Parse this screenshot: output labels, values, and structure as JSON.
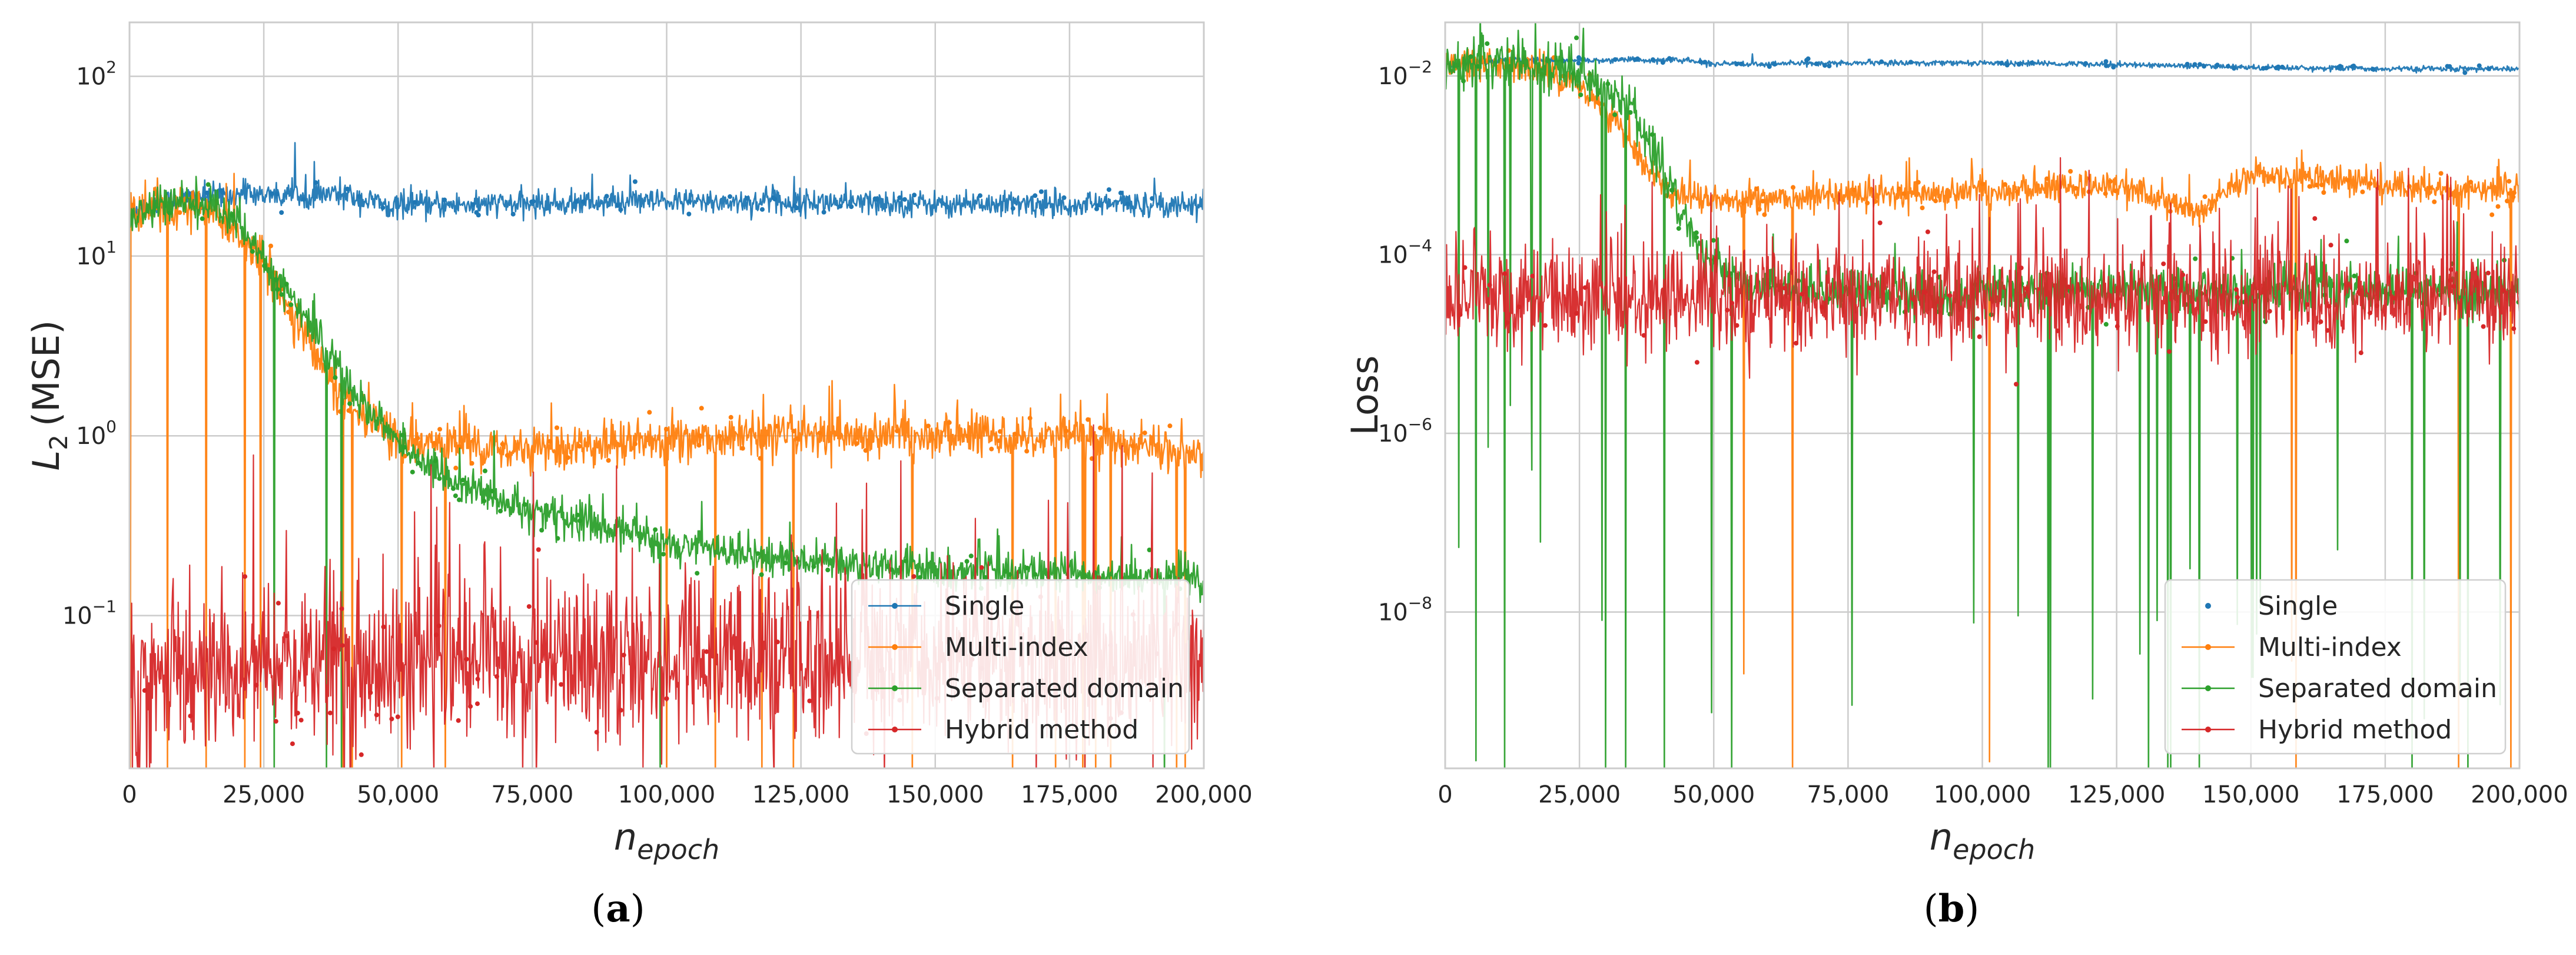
{
  "chart_data": [
    {
      "id": "a",
      "type": "line",
      "panel_label": "(a)",
      "panel_letter": "a",
      "xlabel": "n_epoch",
      "xlabel_main": "n",
      "xlabel_sub": "epoch",
      "ylabel": "L_2 (MSE)",
      "ylabel_main": "L",
      "ylabel_sub": "2",
      "ylabel_rest": "(MSE)",
      "yscale": "log",
      "xlim": [
        0,
        200000
      ],
      "ylim_log10": [
        -1.85,
        2.3
      ],
      "x_ticks": [
        0,
        25000,
        50000,
        75000,
        100000,
        125000,
        150000,
        175000,
        200000
      ],
      "x_tick_labels": [
        "0",
        "25,000",
        "50,000",
        "75,000",
        "100,000",
        "125,000",
        "150,000",
        "175,000",
        "200,000"
      ],
      "y_ticks_log10": [
        -1,
        0,
        1,
        2
      ],
      "y_tick_labels": [
        {
          "base": "10",
          "exp": "−1"
        },
        {
          "base": "10",
          "exp": "0"
        },
        {
          "base": "10",
          "exp": "1"
        },
        {
          "base": "10",
          "exp": "2"
        }
      ],
      "grid": true,
      "legend_position": "lower-right",
      "series": [
        {
          "name": "Single",
          "color": "#1f77b4",
          "x": [
            0,
            10000,
            20000,
            30000,
            40000,
            45000,
            50000,
            75000,
            100000,
            125000,
            150000,
            175000,
            200000
          ],
          "y": [
            18,
            21,
            22,
            22,
            22,
            20,
            19,
            19.5,
            20,
            20,
            19.5,
            19.5,
            19.5
          ]
        },
        {
          "name": "Multi-index",
          "color": "#ff7f0e",
          "x": [
            0,
            5000,
            15000,
            25000,
            32000,
            40000,
            50000,
            60000,
            75000,
            100000,
            125000,
            150000,
            175000,
            200000
          ],
          "y": [
            17,
            19,
            18,
            9,
            4,
            1.5,
            0.95,
            0.9,
            0.85,
            0.95,
            1.0,
            1.0,
            1.0,
            0.8
          ]
        },
        {
          "name": "Separated domain",
          "color": "#2ca02c",
          "x": [
            0,
            5000,
            15000,
            20000,
            30000,
            40000,
            50000,
            60000,
            75000,
            100000,
            125000,
            150000,
            175000,
            200000
          ],
          "y": [
            17,
            19,
            19.5,
            16,
            6,
            2.0,
            0.9,
            0.55,
            0.38,
            0.25,
            0.2,
            0.18,
            0.17,
            0.16
          ]
        },
        {
          "name": "Hybrid method",
          "color": "#d62728",
          "x": [
            0,
            5000,
            25000,
            50000,
            75000,
            100000,
            125000,
            150000,
            175000,
            200000
          ],
          "y": [
            0.03,
            0.045,
            0.05,
            0.052,
            0.055,
            0.055,
            0.055,
            0.055,
            0.055,
            0.055
          ]
        }
      ]
    },
    {
      "id": "b",
      "type": "line",
      "panel_label": "(b)",
      "panel_letter": "b",
      "xlabel": "n_epoch",
      "xlabel_main": "n",
      "xlabel_sub": "epoch",
      "ylabel": "Loss",
      "yscale": "log",
      "xlim": [
        0,
        200000
      ],
      "ylim_log10": [
        -9.75,
        -1.4
      ],
      "x_ticks": [
        0,
        25000,
        50000,
        75000,
        100000,
        125000,
        150000,
        175000,
        200000
      ],
      "x_tick_labels": [
        "0",
        "25,000",
        "50,000",
        "75,000",
        "100,000",
        "125,000",
        "150,000",
        "175,000",
        "200,000"
      ],
      "y_ticks_log10": [
        -8,
        -6,
        -4,
        -2
      ],
      "y_tick_labels": [
        {
          "base": "10",
          "exp": "−8"
        },
        {
          "base": "10",
          "exp": "−6"
        },
        {
          "base": "10",
          "exp": "−4"
        },
        {
          "base": "10",
          "exp": "−2"
        }
      ],
      "grid": true,
      "legend_position": "lower-right",
      "series": [
        {
          "name": "Single",
          "color": "#1f77b4",
          "x": [
            0,
            10000,
            25000,
            45000,
            50000,
            75000,
            100000,
            125000,
            150000,
            175000,
            200000
          ],
          "y": [
            0.013,
            0.015,
            0.015,
            0.015,
            0.0135,
            0.014,
            0.014,
            0.0135,
            0.0125,
            0.012,
            0.012
          ]
        },
        {
          "name": "Multi-index",
          "color": "#ff7f0e",
          "x": [
            0,
            5000,
            15000,
            25000,
            32000,
            38000,
            42000,
            50000,
            75000,
            100000,
            125000,
            140000,
            150000,
            175000,
            200000
          ],
          "y": [
            0.012,
            0.014,
            0.013,
            0.008,
            0.003,
            0.0009,
            0.0005,
            0.0004,
            0.00045,
            0.0005,
            0.0006,
            0.0003,
            0.0008,
            0.0006,
            0.0005
          ]
        },
        {
          "name": "Separated domain",
          "color": "#2ca02c",
          "x": [
            0,
            5000,
            15000,
            25000,
            35000,
            42000,
            48000,
            55000,
            60000,
            70000,
            80000,
            95000,
            100000,
            125000,
            150000,
            175000,
            200000
          ],
          "y": [
            0.012,
            0.014,
            0.014,
            0.01,
            0.004,
            0.0005,
            0.0001,
            5e-05,
            4e-05,
            4e-05,
            4e-05,
            3e-05,
            4e-05,
            4e-05,
            4e-05,
            4e-05,
            4e-05
          ]
        },
        {
          "name": "Hybrid method",
          "color": "#d62728",
          "x": [
            0,
            5000,
            25000,
            50000,
            75000,
            100000,
            125000,
            150000,
            175000,
            200000
          ],
          "y": [
            2e-05,
            3e-05,
            3e-05,
            3e-05,
            3e-05,
            3e-05,
            3e-05,
            3e-05,
            3e-05,
            3e-05
          ]
        }
      ]
    }
  ]
}
